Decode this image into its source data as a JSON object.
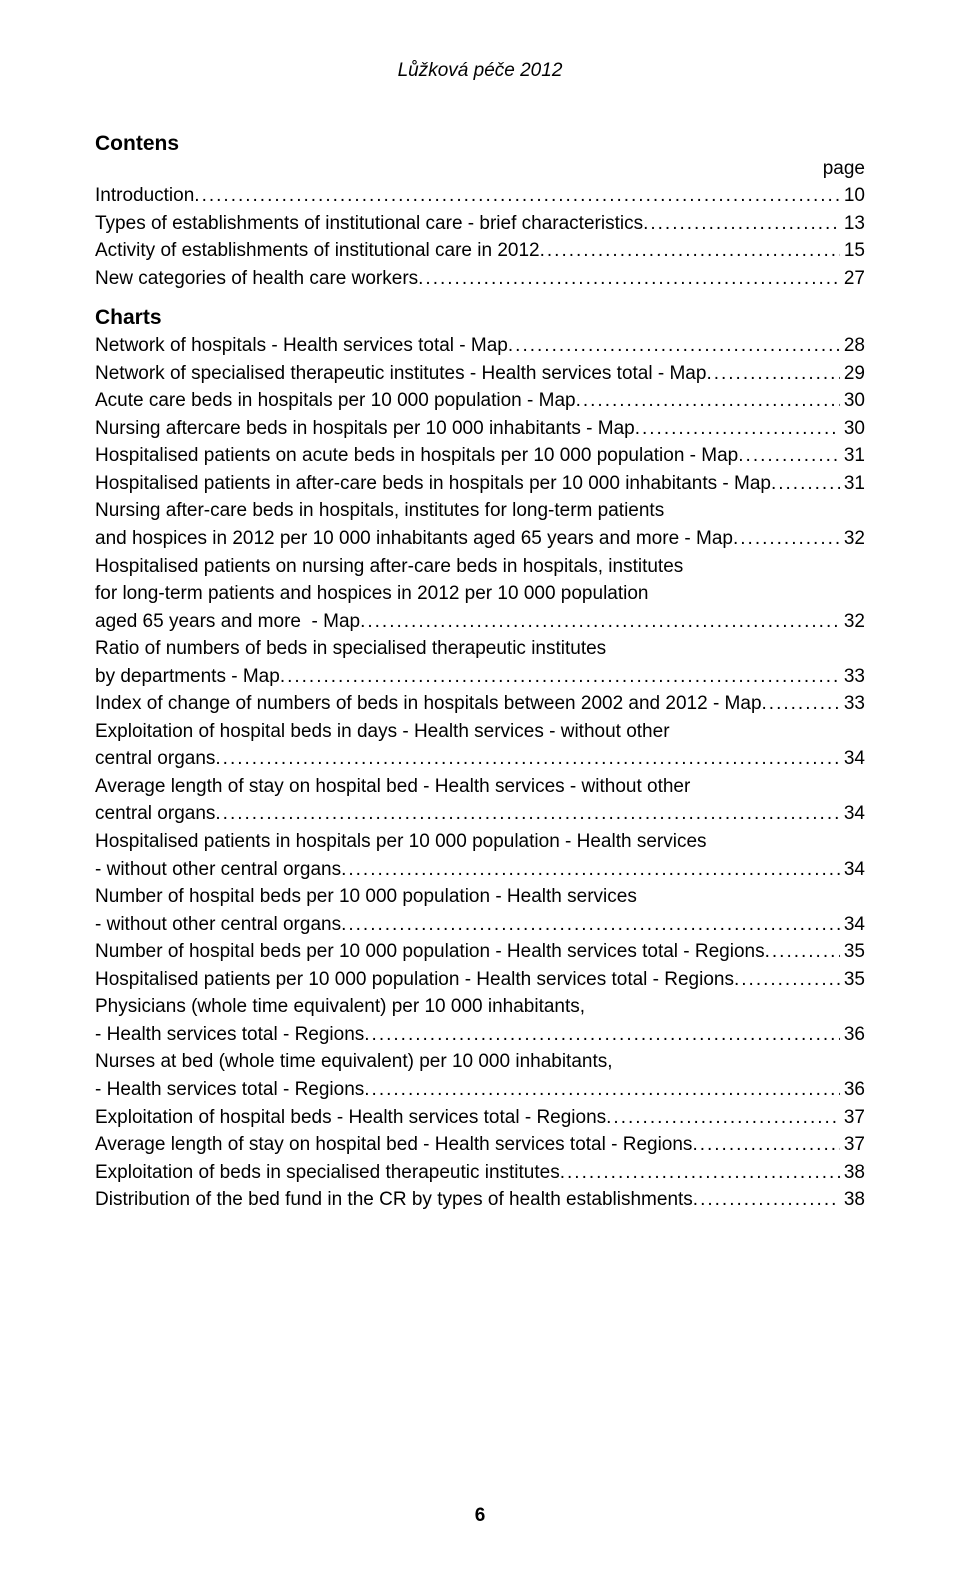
{
  "doc": {
    "title_italic": "Lůžková péče 2012",
    "page_label": "page",
    "footer_page_number": "6"
  },
  "headings": {
    "contens": "Contens",
    "charts": "Charts"
  },
  "toc": {
    "intro": [
      {
        "text": "Introduction",
        "page": "10"
      },
      {
        "text": "Types of establishments of institutional care - brief characteristics",
        "page": "13"
      },
      {
        "text": "Activity of establishments of institutional care in 2012",
        "page": "15"
      },
      {
        "text": "New categories of health care workers",
        "page": "27"
      }
    ],
    "charts": [
      {
        "lines": [
          "Network of hospitals - Health services total - Map"
        ],
        "page": "28"
      },
      {
        "lines": [
          "Network of specialised therapeutic institutes - Health services total - Map"
        ],
        "page": "29"
      },
      {
        "lines": [
          "Acute care beds in hospitals per 10 000 population - Map"
        ],
        "page": "30"
      },
      {
        "lines": [
          "Nursing aftercare beds in hospitals per 10 000 inhabitants - Map"
        ],
        "page": "30"
      },
      {
        "lines": [
          "Hospitalised patients on acute beds in hospitals per 10 000 population - Map"
        ],
        "page": "31"
      },
      {
        "lines": [
          "Hospitalised patients in after-care beds in hospitals per 10 000 inhabitants - Map"
        ],
        "page": "31"
      },
      {
        "lines": [
          "Nursing after-care beds in hospitals, institutes for long-term patients",
          "and hospices in 2012 per 10 000 inhabitants aged 65 years and more - Map"
        ],
        "page": "32"
      },
      {
        "lines": [
          "Hospitalised patients on nursing after-care beds in hospitals, institutes",
          "for long-term patients and hospices in 2012 per 10 000 population",
          "aged 65 years and more  - Map"
        ],
        "page": "32"
      },
      {
        "lines": [
          "Ratio of numbers of beds in specialised therapeutic institutes",
          "by departments - Map"
        ],
        "page": "33"
      },
      {
        "lines": [
          "Index of change of numbers of beds in hospitals between 2002 and 2012 - Map"
        ],
        "page": "33"
      },
      {
        "lines": [
          "Exploitation of hospital beds in days - Health services - without other",
          "central organs"
        ],
        "page": "34"
      },
      {
        "lines": [
          "Average length of stay on hospital bed - Health services - without other",
          "central organs"
        ],
        "page": "34"
      },
      {
        "lines": [
          "Hospitalised patients in hospitals per 10 000 population - Health services",
          "- without other central organs"
        ],
        "page": "34"
      },
      {
        "lines": [
          "Number of hospital beds per 10 000 population - Health services",
          "- without other central organs"
        ],
        "page": "34"
      },
      {
        "lines": [
          "Number of hospital beds per 10 000 population - Health services total - Regions"
        ],
        "page": "35"
      },
      {
        "lines": [
          "Hospitalised patients per 10 000 population - Health services total - Regions"
        ],
        "page": "35"
      },
      {
        "lines": [
          "Physicians (whole time equivalent) per 10 000 inhabitants,",
          "- Health services total - Regions"
        ],
        "page": "36"
      },
      {
        "lines": [
          "Nurses at bed (whole time equivalent) per 10 000 inhabitants,",
          "- Health services total - Regions"
        ],
        "page": "36"
      },
      {
        "lines": [
          "Exploitation of hospital beds - Health services total - Regions"
        ],
        "page": "37"
      },
      {
        "lines": [
          "Average length of stay on hospital bed - Health services total - Regions"
        ],
        "page": "37"
      },
      {
        "lines": [
          "Exploitation of beds in specialised therapeutic institutes"
        ],
        "page": "38"
      },
      {
        "lines": [
          "Distribution of the bed fund in the CR by types of health establishments"
        ],
        "page": "38"
      }
    ]
  }
}
